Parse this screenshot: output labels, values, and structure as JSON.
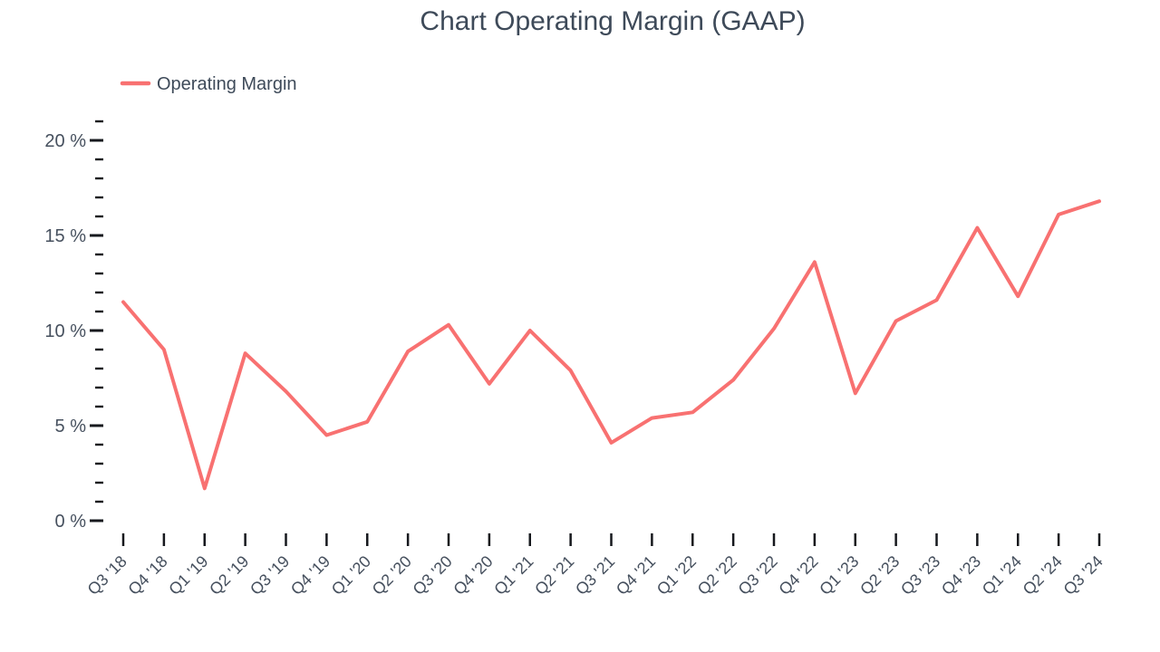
{
  "chart": {
    "title": "Chart Operating Margin (GAAP)",
    "legend_label": "Operating Margin"
  },
  "colors": {
    "series_line": "#f87171",
    "heading_text": "#3e4a59",
    "axis_label_text": "#46505e",
    "tick_mark": "#16181d",
    "background": "#ffffff"
  },
  "chart_data": {
    "type": "line",
    "title": "Chart Operating Margin (GAAP)",
    "legend": [
      "Operating Margin"
    ],
    "legend_position": "top-left",
    "grid": false,
    "xlabel": "",
    "ylabel": "",
    "ylim": [
      0,
      21
    ],
    "y_minor_tick_step": 1,
    "y_major_ticks": [
      {
        "value": 0,
        "label": "0 %"
      },
      {
        "value": 5,
        "label": "5 %"
      },
      {
        "value": 10,
        "label": "10 %"
      },
      {
        "value": 15,
        "label": "15 %"
      },
      {
        "value": 20,
        "label": "20 %"
      }
    ],
    "categories": [
      "Q3 '18",
      "Q4 '18",
      "Q1 '19",
      "Q2 '19",
      "Q3 '19",
      "Q4 '19",
      "Q1 '20",
      "Q2 '20",
      "Q3 '20",
      "Q4 '20",
      "Q1 '21",
      "Q2 '21",
      "Q3 '21",
      "Q4 '21",
      "Q1 '22",
      "Q2 '22",
      "Q3 '22",
      "Q4 '22",
      "Q1 '23",
      "Q2 '23",
      "Q3 '23",
      "Q4 '23",
      "Q1 '24",
      "Q2 '24",
      "Q3 '24"
    ],
    "series": [
      {
        "name": "Operating Margin",
        "unit": "%",
        "color": "#f87171",
        "values": [
          11.5,
          9.0,
          1.7,
          8.8,
          6.8,
          4.5,
          5.2,
          8.9,
          10.3,
          7.2,
          10.0,
          7.9,
          4.1,
          5.4,
          5.7,
          7.4,
          10.1,
          13.6,
          6.7,
          10.5,
          11.6,
          15.4,
          11.8,
          16.1,
          16.8
        ]
      }
    ]
  }
}
